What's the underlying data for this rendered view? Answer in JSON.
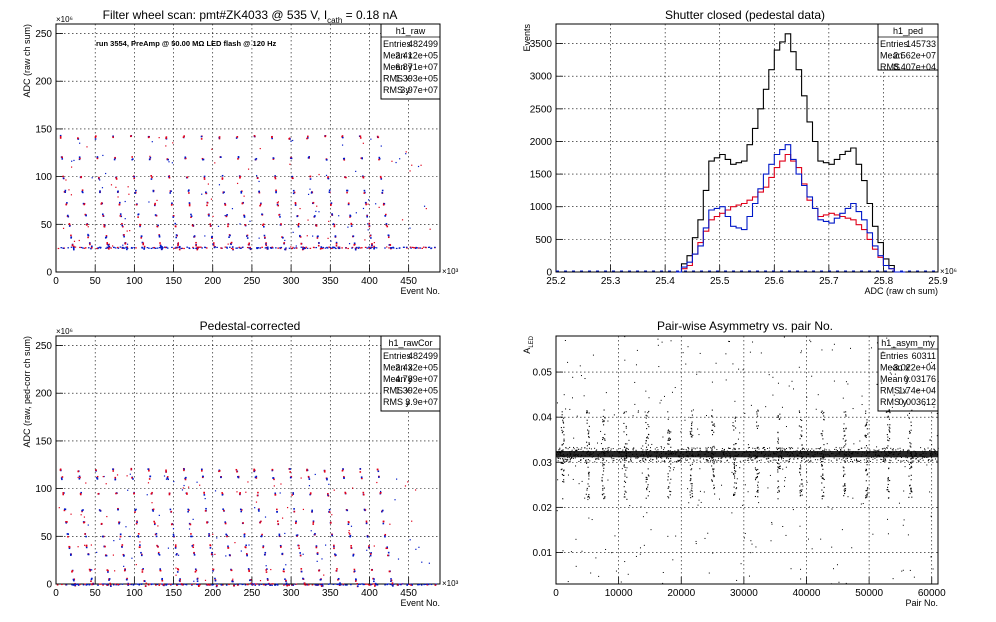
{
  "panels": [
    {
      "title": "Filter wheel scan: pmt#ZK4033 @   535 V, I",
      "title_sub": "cath",
      "title_tail": " = 0.18 nA",
      "annotation": "run 3554, PreAmp @ 50.00 MΩ LED flash @  120 Hz",
      "stats": {
        "name": "h1_raw",
        "rows": [
          [
            "Entries",
            "482499"
          ],
          [
            "Mean x",
            "2.412e+05"
          ],
          [
            "Mean y",
            "6.871e+07"
          ],
          [
            "RMS x",
            "1.393e+05"
          ],
          [
            "RMS y",
            "3.97e+07"
          ]
        ]
      },
      "xlabel": "Event No.",
      "ylabel": "ADC (raw ch sum)",
      "xexp": "×10³",
      "yexp": "×10⁶",
      "xticks": [
        "0",
        "50",
        "100",
        "150",
        "200",
        "250",
        "300",
        "350",
        "400",
        "450"
      ],
      "yticks": [
        "0",
        "50",
        "100",
        "150",
        "200",
        "250"
      ]
    },
    {
      "title": "Shutter closed (pedestal data)",
      "stats": {
        "name": "h1_ped",
        "rows": [
          [
            "Entries",
            "145733"
          ],
          [
            "Mean",
            "2.562e+07"
          ],
          [
            "RMS",
            "8.407e+04"
          ]
        ]
      },
      "xlabel": "ADC (raw ch sum)",
      "ylabel": "Events",
      "xexp": "×10⁶",
      "xticks": [
        "25.2",
        "25.3",
        "25.4",
        "25.5",
        "25.6",
        "25.7",
        "25.8",
        "25.9"
      ],
      "yticks": [
        "0",
        "500",
        "1000",
        "1500",
        "2000",
        "2500",
        "3000",
        "3500"
      ]
    },
    {
      "title": "Pedestal-corrected",
      "stats": {
        "name": "h1_rawCor",
        "rows": [
          [
            "Entries",
            "482499"
          ],
          [
            "Mean x",
            "2.432e+05"
          ],
          [
            "Mean y",
            "4.789e+07"
          ],
          [
            "RMS x",
            "1.392e+05"
          ],
          [
            "RMS y",
            "3.9e+07"
          ]
        ]
      },
      "xlabel": "Event No.",
      "ylabel": "ADC (raw, ped-corr ch sum)",
      "xexp": "×10³",
      "yexp": "×10⁶",
      "xticks": [
        "0",
        "50",
        "100",
        "150",
        "200",
        "250",
        "300",
        "350",
        "400",
        "450"
      ],
      "yticks": [
        "0",
        "50",
        "100",
        "150",
        "200",
        "250"
      ]
    },
    {
      "title": "Pair-wise Asymmetry vs. pair No.",
      "stats": {
        "name": "h1_asym_my",
        "rows": [
          [
            "Entries",
            "60311"
          ],
          [
            "Mean x",
            "3.022e+04"
          ],
          [
            "Mean y",
            "0.03176"
          ],
          [
            "RMS x",
            "1.74e+04"
          ],
          [
            "RMS y",
            "0.003612"
          ]
        ]
      },
      "xlabel": "Pair No.",
      "ylabel": "A",
      "ylabel_sub": "LED",
      "xticks": [
        "0",
        "10000",
        "20000",
        "30000",
        "40000",
        "50000",
        "60000"
      ],
      "yticks": [
        "0.01",
        "0.02",
        "0.03",
        "0.04",
        "0.05"
      ]
    }
  ],
  "colors": {
    "black": "#000000",
    "red": "#e0001a",
    "blue": "#0018c8",
    "grid": "#000000"
  },
  "chart_data": [
    {
      "type": "scatter",
      "title": "Filter wheel scan: pmt#ZK4033 @   535 V, Icath = 0.18 nA",
      "xlabel": "Event No.",
      "ylabel": "ADC (raw ch sum)",
      "x_scale": 1000,
      "y_scale": 1000000,
      "xlim": [
        0,
        490
      ],
      "ylim": [
        0,
        260
      ],
      "grid": true,
      "step_levels": [
        142,
        120,
        100,
        85,
        72,
        60,
        50,
        38,
        30,
        26
      ],
      "baseline": 26
    },
    {
      "type": "line",
      "title": "Shutter closed (pedestal data)",
      "xlabel": "ADC (raw ch sum)",
      "ylabel": "Events",
      "x_scale": 1000000,
      "xlim": [
        25.2,
        25.9
      ],
      "ylim": [
        0,
        3800
      ],
      "grid": true,
      "series": [
        {
          "color": "black",
          "x": [
            25.42,
            25.44,
            25.46,
            25.48,
            25.5,
            25.52,
            25.54,
            25.56,
            25.58,
            25.6,
            25.62,
            25.64,
            25.66,
            25.68,
            25.7,
            25.72,
            25.74,
            25.76,
            25.78,
            25.8,
            25.82
          ],
          "values": [
            0,
            250,
            800,
            1700,
            1800,
            1650,
            1700,
            2200,
            2800,
            3400,
            3650,
            3100,
            2300,
            1700,
            1650,
            1800,
            1900,
            1400,
            700,
            200,
            0
          ]
        },
        {
          "color": "red",
          "x": [
            25.42,
            25.44,
            25.46,
            25.48,
            25.5,
            25.52,
            25.54,
            25.56,
            25.58,
            25.6,
            25.62,
            25.64,
            25.66,
            25.68,
            25.7,
            25.72,
            25.74,
            25.76,
            25.78,
            25.8,
            25.82
          ],
          "values": [
            0,
            100,
            450,
            800,
            900,
            1000,
            1050,
            1150,
            1300,
            1600,
            1800,
            1600,
            1100,
            850,
            900,
            850,
            800,
            650,
            350,
            100,
            0
          ]
        },
        {
          "color": "blue",
          "x": [
            25.42,
            25.44,
            25.46,
            25.48,
            25.5,
            25.52,
            25.54,
            25.56,
            25.58,
            25.6,
            25.62,
            25.64,
            25.66,
            25.68,
            25.7,
            25.72,
            25.74,
            25.76,
            25.78,
            25.8,
            25.82
          ],
          "values": [
            0,
            150,
            400,
            950,
            1000,
            700,
            650,
            1050,
            1500,
            1800,
            1950,
            1500,
            1150,
            800,
            750,
            900,
            1050,
            800,
            400,
            100,
            0
          ]
        }
      ]
    },
    {
      "type": "scatter",
      "title": "Pedestal-corrected",
      "xlabel": "Event No.",
      "ylabel": "ADC (raw, ped-corr ch sum)",
      "x_scale": 1000,
      "y_scale": 1000000,
      "xlim": [
        0,
        490
      ],
      "ylim": [
        0,
        260
      ],
      "grid": true,
      "step_levels": [
        120,
        112,
        95,
        78,
        65,
        52,
        40,
        32,
        15,
        5,
        0
      ],
      "baseline": 0
    },
    {
      "type": "scatter",
      "title": "Pair-wise Asymmetry vs. pair No.",
      "xlabel": "Pair No.",
      "ylabel": "A_LED",
      "xlim": [
        0,
        61000
      ],
      "ylim": [
        0.003,
        0.058
      ],
      "grid": true,
      "band_center": 0.0318,
      "band_halfwidth": 0.0007,
      "spike_x": [
        1000,
        5000,
        7500,
        11000,
        14500,
        18000,
        21500,
        25000,
        28500,
        32000,
        35500,
        39000,
        42500,
        46000,
        49500,
        53000,
        56500
      ]
    }
  ]
}
